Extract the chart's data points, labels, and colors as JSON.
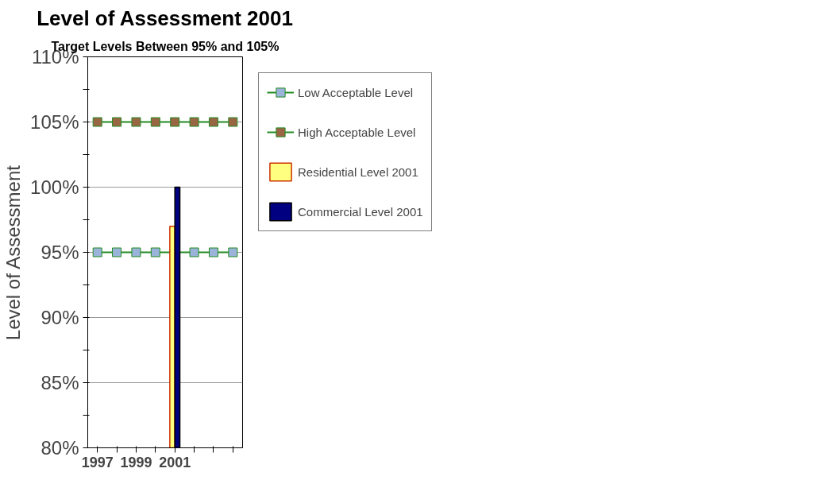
{
  "chart_data": {
    "type": "line",
    "title": "Level of Assessment 2001",
    "subtitle": "Target Levels Between 95% and 105%",
    "ylabel": "Level of Assessment",
    "categories": [
      "1997",
      null,
      "1999",
      null,
      "2001",
      null,
      null,
      null
    ],
    "series": [
      {
        "name": "Low Acceptable Level",
        "color": "#99b3d9",
        "values": [
          95,
          95,
          95,
          95,
          null,
          95,
          95,
          95
        ]
      },
      {
        "name": "High Acceptable Level",
        "color": "#996644",
        "values": [
          105,
          105,
          105,
          105,
          105,
          105,
          105,
          105
        ]
      },
      {
        "name": "Residential Level 2001",
        "type": "bar",
        "color": "#ffff80",
        "values": [
          null,
          null,
          null,
          null,
          97,
          null,
          null,
          null
        ]
      },
      {
        "name": "Commercial Level 2001",
        "type": "bar",
        "color": "#000080",
        "values": [
          null,
          null,
          null,
          null,
          100,
          null,
          null,
          null
        ]
      }
    ],
    "ylim": [
      80,
      110
    ],
    "yticks": [
      {
        "value": 80,
        "label": "80%"
      },
      {
        "value": 82.5,
        "label": null
      },
      {
        "value": 85,
        "label": "85%"
      },
      {
        "value": 87.5,
        "label": null
      },
      {
        "value": 90,
        "label": "90%"
      },
      {
        "value": 92.5,
        "label": null
      },
      {
        "value": 95,
        "label": "95%"
      },
      {
        "value": 97.5,
        "label": null
      },
      {
        "value": 100,
        "label": "100%"
      },
      {
        "value": 102.5,
        "label": null
      },
      {
        "value": 105,
        "label": "105%"
      },
      {
        "value": 107.5,
        "label": null
      },
      {
        "value": 110,
        "label": "110%"
      }
    ],
    "grid": "y",
    "legend": "right",
    "marker": "square"
  }
}
